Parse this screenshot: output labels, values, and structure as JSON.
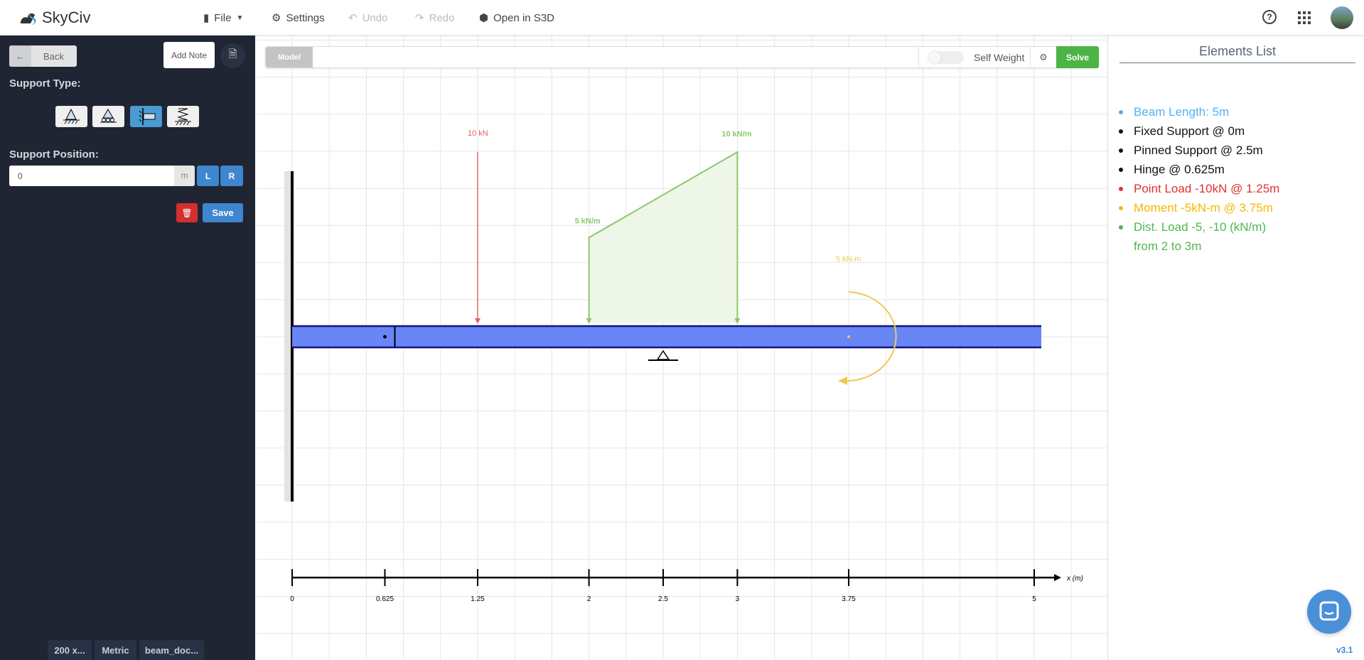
{
  "topbar": {
    "brand": "SkyCiv",
    "menu": [
      {
        "label": "File",
        "icon": "file-icon"
      },
      {
        "label": "Settings",
        "icon": "cogs-icon"
      },
      {
        "label": "Undo",
        "icon": "undo-icon"
      },
      {
        "label": "Redo",
        "icon": "redo-icon"
      },
      {
        "label": "Open in S3D",
        "icon": "cube-icon"
      }
    ]
  },
  "sidebar": {
    "back": "Back",
    "add_note": "Add Note",
    "support_type_label": "Support Type:",
    "support_types": [
      "pinned",
      "roller",
      "fixed",
      "spring"
    ],
    "selected_support": "fixed",
    "support_position_label": "Support Position:",
    "position_value": "0",
    "position_unit": "m",
    "left_btn": "L",
    "right_btn": "R",
    "save": "Save",
    "footer_tags": [
      "200 x...",
      "Metric",
      "beam_doc..."
    ]
  },
  "toolbar": {
    "model_tab": "Model",
    "self_weight": "Self Weight",
    "self_weight_on": false,
    "solve": "Solve"
  },
  "canvas": {
    "beam_length": 5,
    "axis_label": "x (m)",
    "ticks": [
      "0",
      "0.625",
      "1.25",
      "2",
      "2.5",
      "3",
      "3.75",
      "5"
    ],
    "point_load": {
      "label": "10 kN",
      "x": 1.25
    },
    "dist_load": {
      "start_label": "5 kN/m",
      "end_label": "10 kN/m",
      "from": 2,
      "to": 3,
      "w1": 5,
      "w2": 10
    },
    "moment": {
      "label": "5 kN-m",
      "x": 3.75
    },
    "fixed_support_x": 0,
    "pinned_support_x": 2.5,
    "hinge_x": 0.625,
    "colors": {
      "beam": "#6886f5",
      "beam_edge": "#12127f",
      "point_load": "#e06666",
      "dist_load": "#8cc86a",
      "moment": "#f0c850"
    }
  },
  "elements_list": {
    "title": "Elements List",
    "items": [
      {
        "text": "Beam Length: 5m",
        "color": "#4fb3f5"
      },
      {
        "text": "Fixed Support @ 0m",
        "color": "#111111"
      },
      {
        "text": "Pinned Support @ 2.5m",
        "color": "#111111"
      },
      {
        "text": "Hinge @ 0.625m",
        "color": "#111111"
      },
      {
        "text": "Point Load -10kN @ 1.25m",
        "color": "#dd3333"
      },
      {
        "text": "Moment -5kN-m @ 3.75m",
        "color": "#f5b800"
      },
      {
        "text": "Dist. Load -5, -10 (kN/m)",
        "color": "#4cb84c"
      },
      {
        "text": "from 2 to 3m",
        "color": "#4cb84c",
        "continuation": true
      }
    ]
  },
  "version": "v3.1"
}
